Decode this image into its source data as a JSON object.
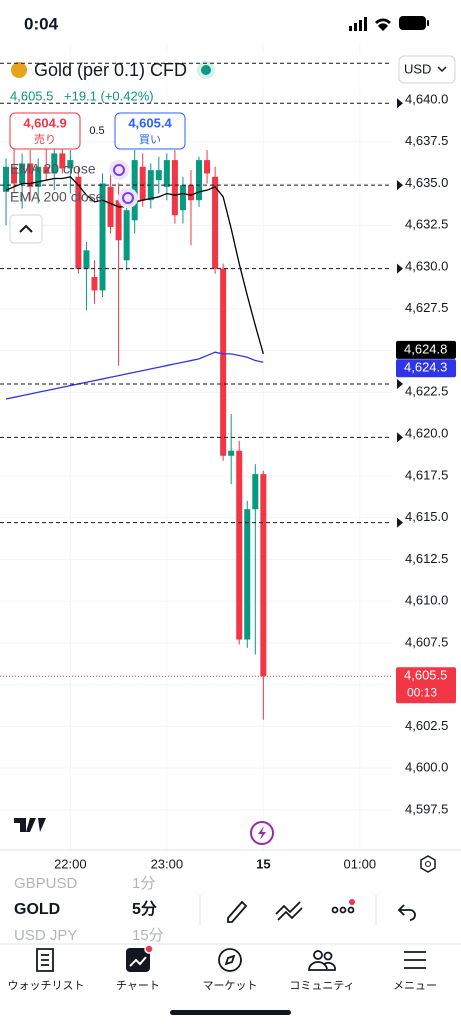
{
  "status_bar": {
    "time": "0:04"
  },
  "header": {
    "title": "Gold (per 0.1) CFD",
    "currency": "USD",
    "last": "4,605.5",
    "change": "+19.1 (+0.42%)",
    "sell": {
      "price": "4,604.9",
      "label": "売り"
    },
    "spread": "0.5",
    "buy": {
      "price": "4,605.4",
      "label": "買い"
    },
    "indicators": [
      "EMA 20 close",
      "EMA 200 close"
    ]
  },
  "chart_data": {
    "type": "candlestick",
    "categories": [
      null,
      null,
      null,
      null,
      null,
      null,
      null,
      null,
      null,
      null,
      null,
      null,
      null,
      null,
      null,
      null,
      null,
      null,
      null,
      null,
      null,
      null,
      null,
      null,
      null,
      null,
      null,
      null,
      null,
      null,
      null,
      null,
      null
    ],
    "open": [
      4634.5,
      4636.0,
      4635.0,
      4636.2,
      4634.8,
      4636.0,
      4635.6,
      4636.8,
      4635.9,
      4635.4,
      4629.9,
      4629.4,
      4628.6,
      4634.8,
      4634.0,
      4630.4,
      4632.8,
      4636.0,
      4634.0,
      4635.2,
      4634.8,
      4636.4,
      4633.4,
      4634.9,
      4634.0,
      4636.4,
      4635.4,
      4629.9,
      4618.7,
      4619.0,
      4607.7,
      4615.5,
      4617.6
    ],
    "high": [
      4636.5,
      4637.5,
      4636.8,
      4637.0,
      4636.5,
      4637.8,
      4637.2,
      4638.5,
      4637.0,
      4636.0,
      4631.5,
      4630.4,
      4635.6,
      4635.8,
      4635.0,
      4633.8,
      4637.0,
      4636.8,
      4636.2,
      4636.6,
      4636.8,
      4637.0,
      4635.4,
      4635.8,
      4636.6,
      4637.0,
      4636.0,
      4630.2,
      4621.2,
      4619.6,
      4616.0,
      4618.2,
      4617.8
    ],
    "low": [
      4632.5,
      4634.5,
      4633.5,
      4634.0,
      4633.8,
      4635.2,
      4634.6,
      4635.6,
      4634.4,
      4629.6,
      4627.4,
      4627.8,
      4628.2,
      4632.0,
      4624.1,
      4629.8,
      4632.0,
      4633.6,
      4633.5,
      4634.4,
      4634.0,
      4632.6,
      4632.6,
      4631.3,
      4633.6,
      4635.0,
      4629.6,
      4618.4,
      4617.0,
      4607.4,
      4607.2,
      4606.8,
      4602.9
    ],
    "close": [
      4636.0,
      4635.0,
      4636.2,
      4634.8,
      4636.0,
      4635.6,
      4636.8,
      4635.9,
      4636.4,
      4629.9,
      4631.0,
      4628.6,
      4635.0,
      4632.4,
      4631.6,
      4633.4,
      4636.4,
      4634.0,
      4635.8,
      4635.8,
      4636.4,
      4633.1,
      4634.9,
      4634.0,
      4636.4,
      4635.6,
      4629.9,
      4618.7,
      4619.0,
      4607.7,
      4615.5,
      4617.6,
      4605.5
    ],
    "up_color": "#089981",
    "down_color": "#f23645",
    "series": [
      {
        "name": "EMA 20 close",
        "color": "#000000",
        "values": [
          4634.6,
          4634.8,
          4635.0,
          4635.0,
          4635.1,
          4635.2,
          4635.3,
          4635.3,
          4635.4,
          4634.9,
          4634.3,
          4633.9,
          4634.0,
          4633.8,
          4633.6,
          4633.6,
          4633.9,
          4634.0,
          4634.1,
          4634.2,
          4634.4,
          4634.3,
          4634.4,
          4634.3,
          4634.5,
          4634.6,
          4634.8,
          4634.2,
          4632.3,
          4630.2,
          4628.3,
          4626.5,
          4624.8
        ]
      },
      {
        "name": "EMA 200 close",
        "color": "#2e35e8",
        "values": [
          4622.1,
          4622.2,
          4622.3,
          4622.4,
          4622.5,
          4622.6,
          4622.7,
          4622.8,
          4622.9,
          4623.0,
          4623.1,
          4623.2,
          4623.3,
          4623.4,
          4623.5,
          4623.6,
          4623.7,
          4623.8,
          4623.9,
          4624.0,
          4624.1,
          4624.2,
          4624.3,
          4624.4,
          4624.5,
          4624.7,
          4624.9,
          4624.8,
          4624.8,
          4624.7,
          4624.6,
          4624.4,
          4624.3
        ]
      }
    ],
    "alert_lines": [
      4642.2,
      4639.8,
      4634.9,
      4629.9,
      4623.0,
      4619.8,
      4614.7
    ],
    "price_tags": [
      {
        "value": 4624.8,
        "label": "4,624.8",
        "color": "#000000"
      },
      {
        "value": 4624.3,
        "label": "4,624.3",
        "color": "#2e35e8"
      },
      {
        "value": 4605.5,
        "label": "4,605.5",
        "color": "#f23645",
        "time": "00:13"
      }
    ],
    "xlim": [
      -0.75,
      48
    ],
    "xticks": [
      {
        "value": 8,
        "label": "22:00"
      },
      {
        "value": 20,
        "label": "23:00"
      },
      {
        "value": 32,
        "label": "15"
      },
      {
        "value": 44,
        "label": "01:00"
      }
    ],
    "ylim": [
      4595.1,
      4643.35
    ],
    "yticks": [
      {
        "value": 4640,
        "label": "4,640.0"
      },
      {
        "value": 4637.5,
        "label": "4,637.5"
      },
      {
        "value": 4635,
        "label": "4,635.0"
      },
      {
        "value": 4632.5,
        "label": "4,632.5"
      },
      {
        "value": 4630,
        "label": "4,630.0"
      },
      {
        "value": 4627.5,
        "label": "4,627.5"
      },
      {
        "value": 4625,
        "label": "4,625.0"
      },
      {
        "value": 4622.5,
        "label": "4,622.5"
      },
      {
        "value": 4620,
        "label": "4,620.0"
      },
      {
        "value": 4617.5,
        "label": "4,617.5"
      },
      {
        "value": 4615,
        "label": "4,615.0"
      },
      {
        "value": 4612.5,
        "label": "4,612.5"
      },
      {
        "value": 4610,
        "label": "4,610.0"
      },
      {
        "value": 4607.5,
        "label": "4,607.5"
      },
      {
        "value": 4605,
        "label": "4,605.0"
      },
      {
        "value": 4602.5,
        "label": "4,602.5"
      },
      {
        "value": 4600,
        "label": "4,600.0"
      },
      {
        "value": 4597.5,
        "label": "4,597.5"
      }
    ],
    "grid": true
  },
  "picker": {
    "symbols": [
      "GBPUSD",
      "GOLD",
      "USD JPY"
    ],
    "intervals": [
      "1分",
      "5分",
      "15分"
    ]
  },
  "nav": [
    "ウォッチリスト",
    "チャート",
    "マーケット",
    "コミュニティ",
    "メニュー"
  ]
}
